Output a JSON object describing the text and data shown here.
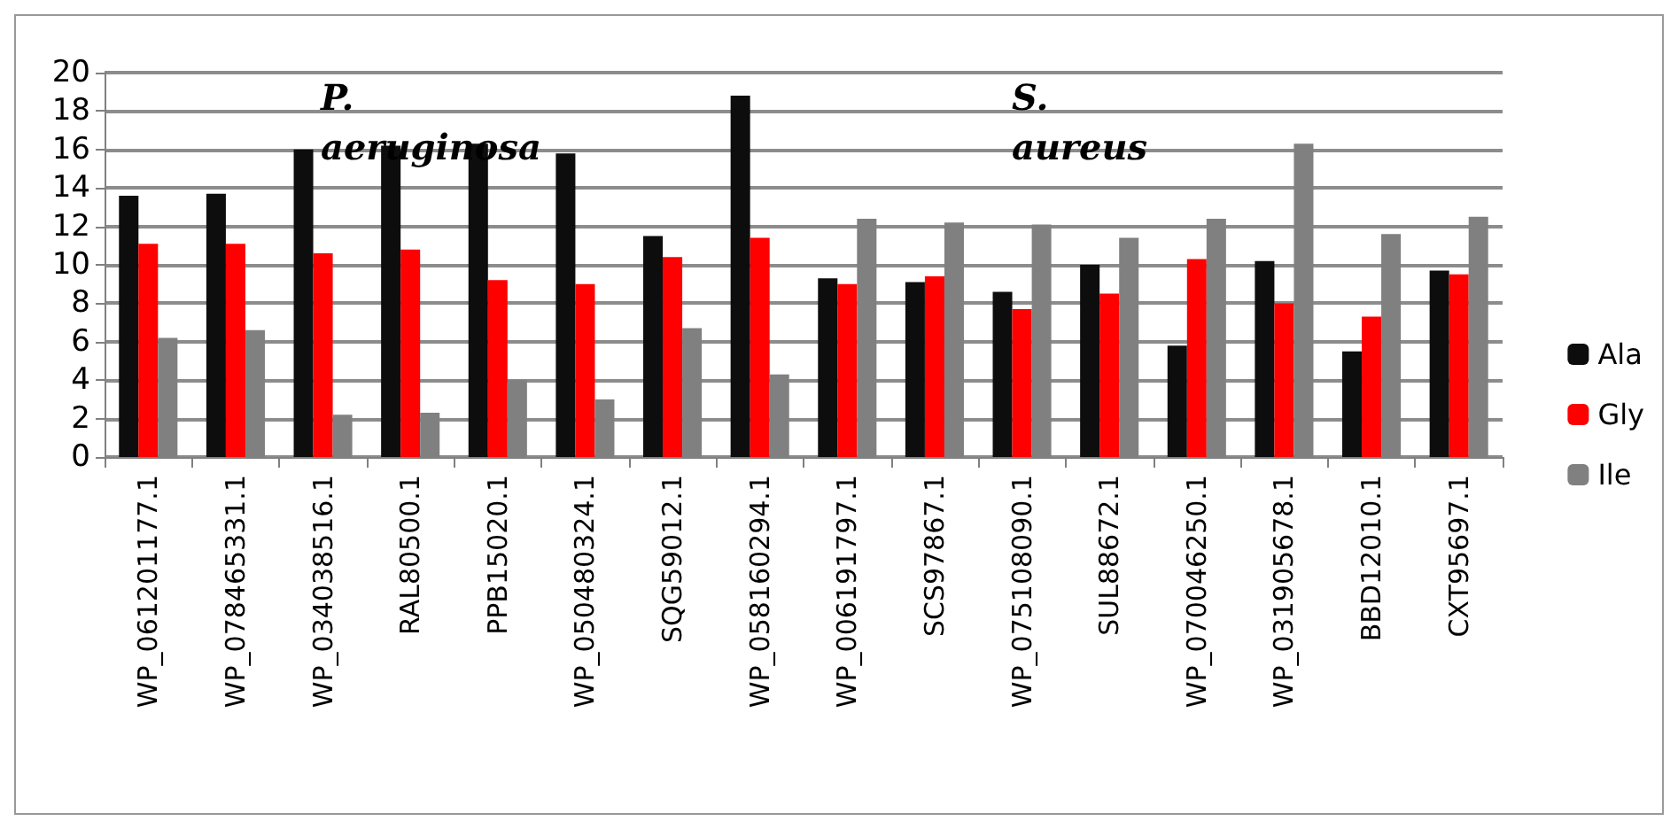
{
  "chart_data": {
    "type": "bar",
    "categories": [
      "WP_061201177.1",
      "WP_078465331.1",
      "WP_034038516.1",
      "RAL80500.1",
      "PPB15020.1",
      "WP_050480324.1",
      "SQG59012.1",
      "WP_058160294.1",
      "WP_006191797.1",
      "SCS97867.1",
      "WP_075108090.1",
      "SUL88672.1",
      "WP_070046250.1",
      "WP_031905678.1",
      "BBD12010.1",
      "CXT95697.1"
    ],
    "series": [
      {
        "name": "Ala",
        "color": "#0d0d0d",
        "values": [
          13.6,
          13.7,
          16.0,
          16.2,
          16.3,
          15.8,
          11.5,
          18.8,
          9.3,
          9.1,
          8.6,
          10.0,
          5.8,
          10.2,
          5.5,
          9.7
        ]
      },
      {
        "name": "Gly",
        "color": "#ff0000",
        "values": [
          11.1,
          11.1,
          10.6,
          10.8,
          9.2,
          9.0,
          10.4,
          11.4,
          9.0,
          9.4,
          7.7,
          8.5,
          10.3,
          8.0,
          7.3,
          9.5
        ]
      },
      {
        "name": "Ile",
        "color": "#808080",
        "values": [
          6.2,
          6.6,
          2.2,
          2.3,
          4.0,
          3.0,
          6.7,
          4.3,
          12.4,
          12.2,
          12.1,
          11.4,
          12.4,
          16.3,
          11.6,
          12.5
        ]
      }
    ],
    "annotations": [
      "P. aeruginosa",
      "S. aureus"
    ],
    "ylim": [
      0,
      20
    ],
    "yticks": [
      0,
      2,
      4,
      6,
      8,
      10,
      12,
      14,
      16,
      18,
      20
    ],
    "grid": "y",
    "legend": "right"
  }
}
